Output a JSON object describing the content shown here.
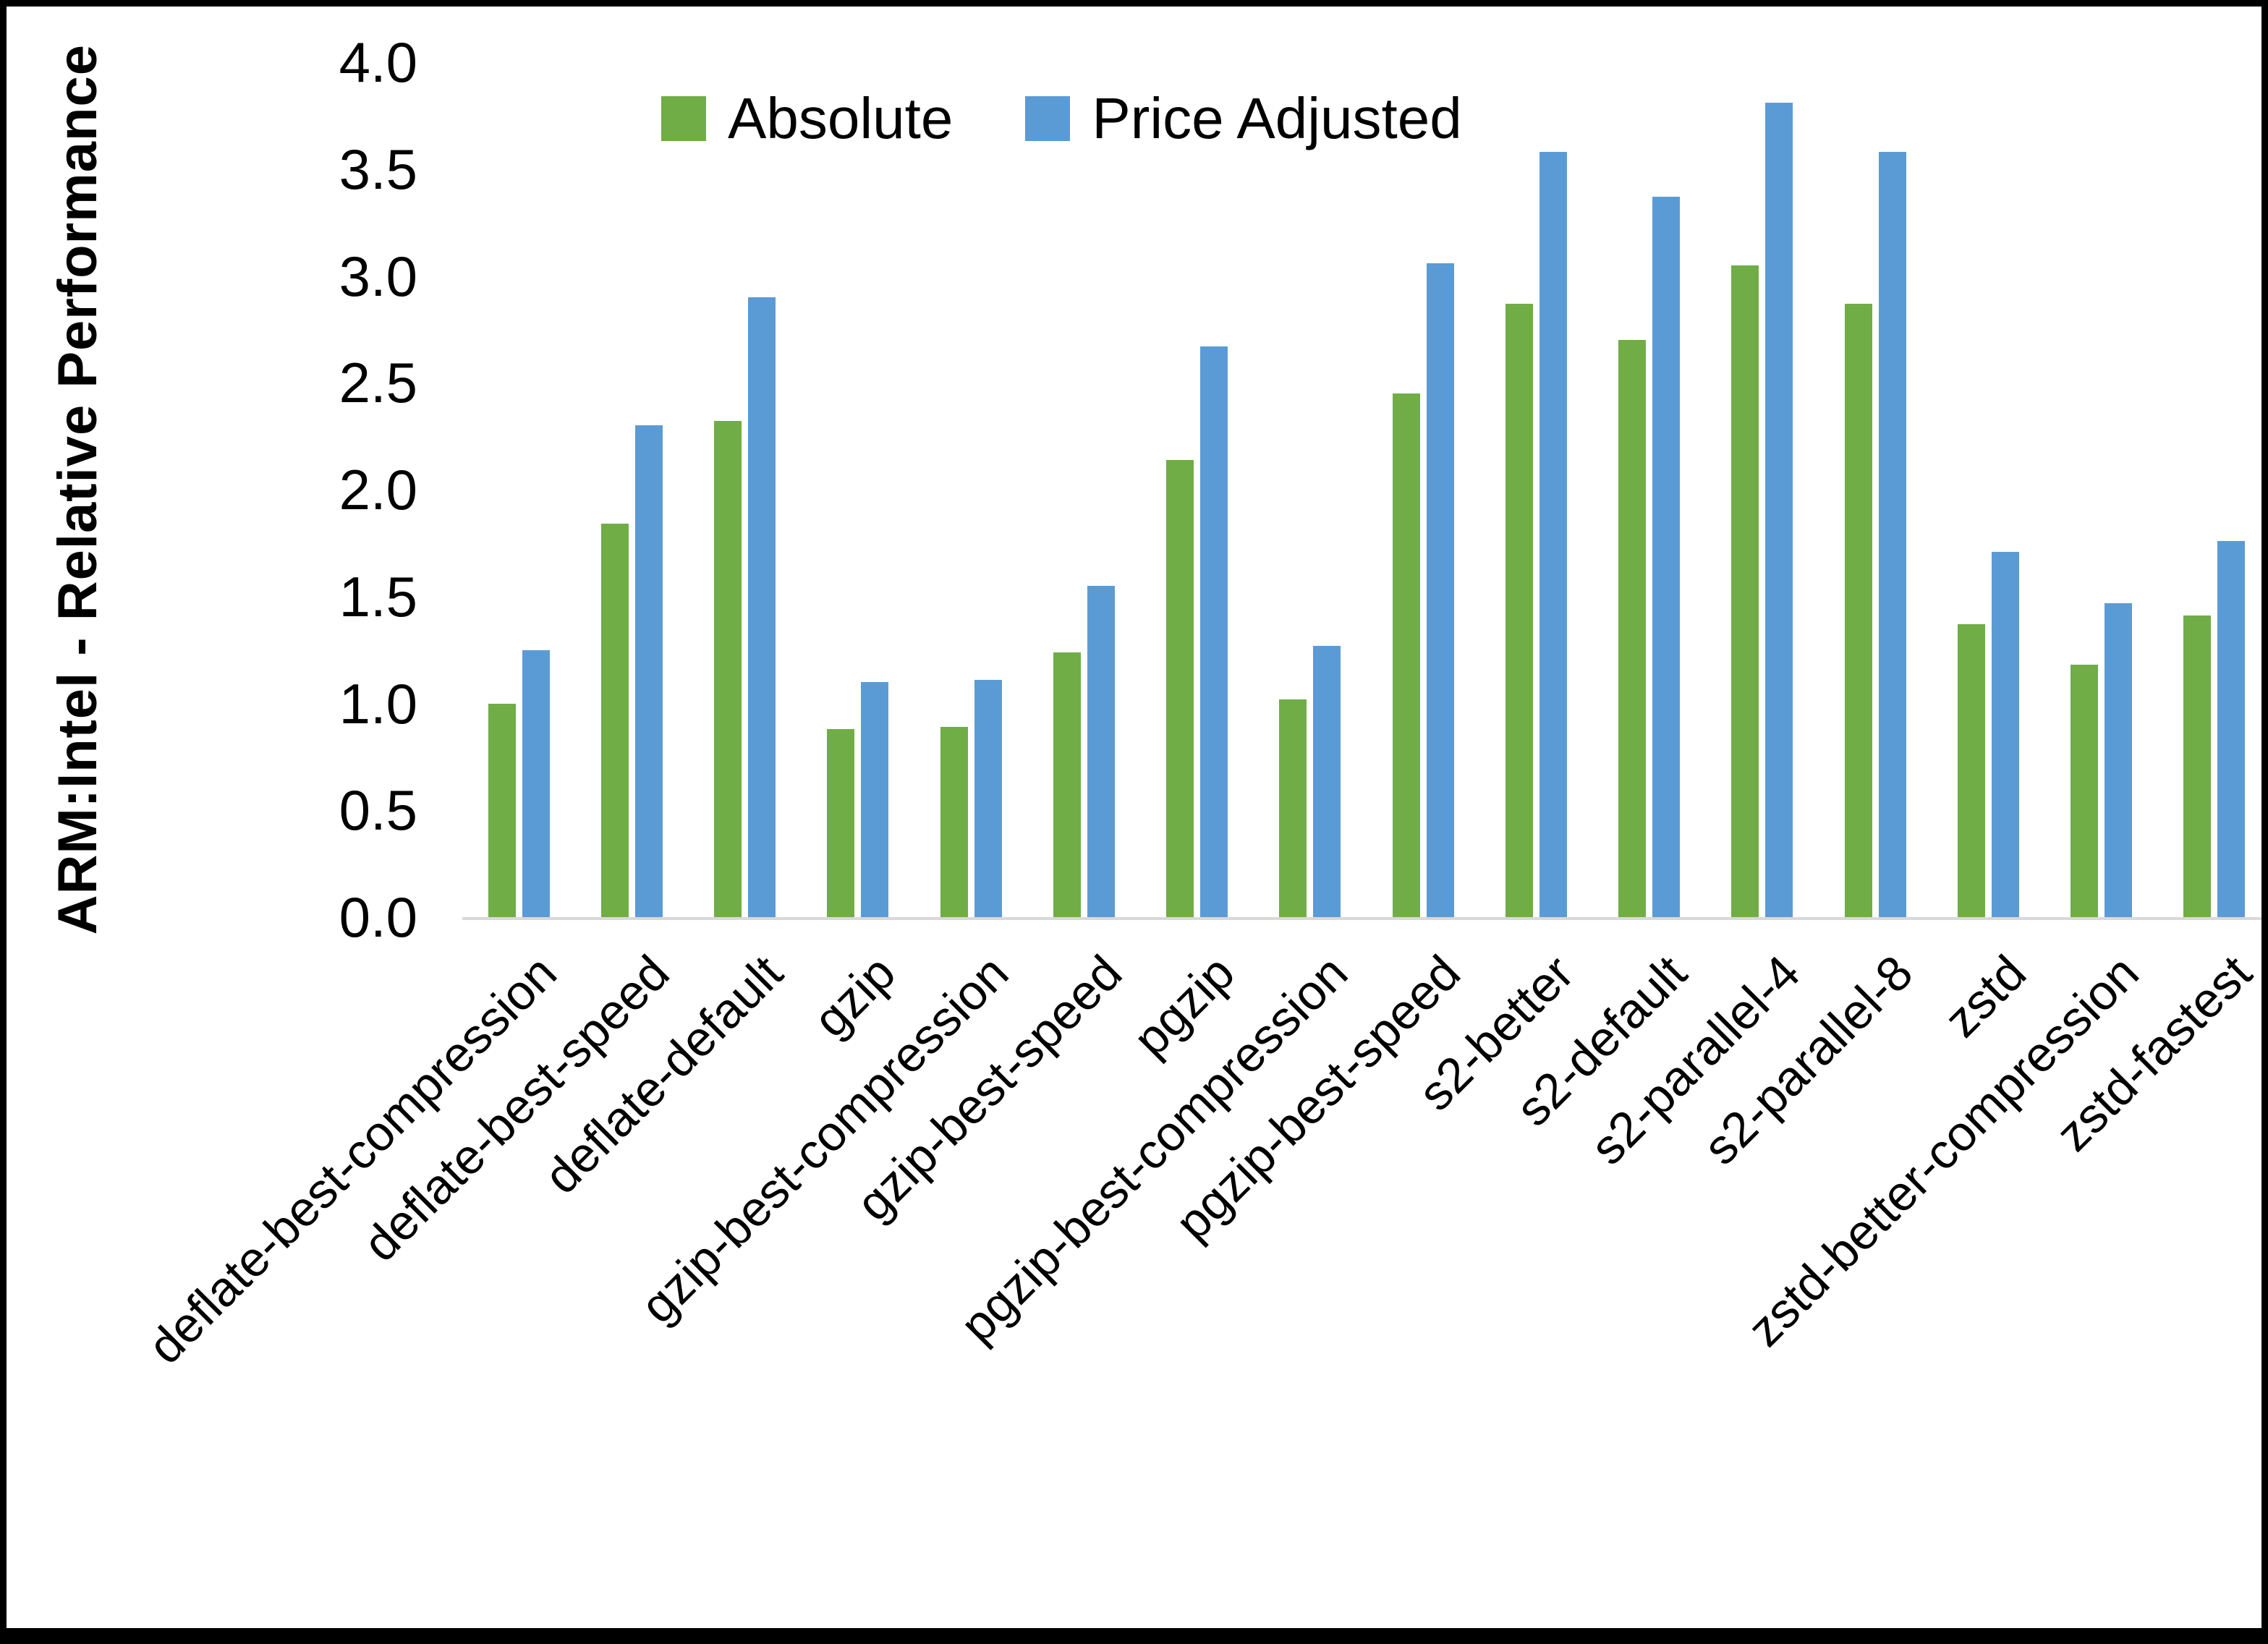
{
  "chart_data": {
    "type": "bar",
    "title": "",
    "ylabel": "ARM:Intel - Relative Performance",
    "xlabel": "",
    "ylim": [
      0,
      4
    ],
    "ytick_step": 0.5,
    "yticks": [
      "4.0",
      "3.5",
      "3.0",
      "2.5",
      "2.0",
      "1.5",
      "1.0",
      "0.5",
      "0.0"
    ],
    "grid": false,
    "legend_position": "top-center-inside",
    "axis_line_color": "#d9d9d9",
    "categories": [
      "deflate-best-compression",
      "deflate-best-speed",
      "deflate-default",
      "gzip",
      "gzip-best-compression",
      "gzip-best-speed",
      "pgzip",
      "pgzip-best-compression",
      "pgzip-best-speed",
      "s2-better",
      "s2-default",
      "s2-parallel-4",
      "s2-parallel-8",
      "zstd",
      "zstd-better-compression",
      "zstd-fastest"
    ],
    "series": [
      {
        "name": "Absolute",
        "color": "#70AD47",
        "values": [
          1.0,
          1.84,
          2.32,
          0.88,
          0.89,
          1.24,
          2.14,
          1.02,
          2.45,
          2.87,
          2.7,
          3.05,
          2.87,
          1.37,
          1.18,
          1.41
        ]
      },
      {
        "name": "Price Adjusted",
        "color": "#5B9BD5",
        "values": [
          1.25,
          2.3,
          2.9,
          1.1,
          1.11,
          1.55,
          2.67,
          1.27,
          3.06,
          3.58,
          3.37,
          3.81,
          3.58,
          1.71,
          1.47,
          1.76
        ]
      }
    ]
  },
  "colors": {
    "background": "#ffffff",
    "border": "#000000",
    "text": "#000000",
    "axis_line": "#d9d9d9",
    "series_absolute": "#70AD47",
    "series_price_adjusted": "#5B9BD5"
  }
}
